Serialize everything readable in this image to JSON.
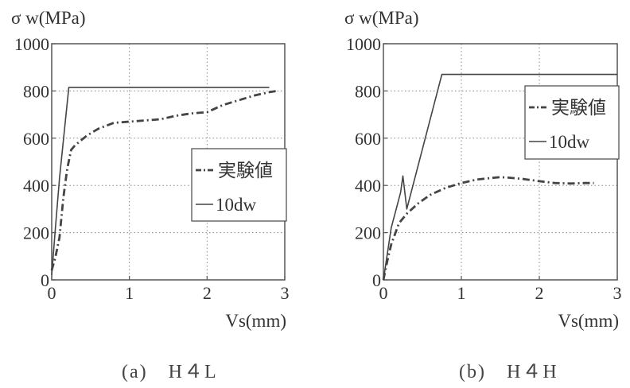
{
  "chart_data": [
    {
      "type": "line",
      "caption": "(a)　H４L",
      "xlabel": "Vs(mm)",
      "ylabel": "σ w(MPa)",
      "xlim": [
        0,
        3
      ],
      "ylim": [
        0,
        1000
      ],
      "xticks": [
        "0",
        "1",
        "2",
        "3"
      ],
      "yticks": [
        "0",
        "200",
        "400",
        "600",
        "800",
        "1000"
      ],
      "grid": "dotted",
      "legend_position": "right-middle",
      "series": [
        {
          "name": "実験値",
          "style": "dashdot",
          "x": [
            0.0,
            0.05,
            0.1,
            0.15,
            0.2,
            0.25,
            0.3,
            0.45,
            0.6,
            0.8,
            1.0,
            1.2,
            1.4,
            1.6,
            1.8,
            2.0,
            2.2,
            2.4,
            2.6,
            2.8,
            2.9
          ],
          "y": [
            40,
            100,
            180,
            350,
            470,
            550,
            570,
            610,
            640,
            665,
            670,
            675,
            680,
            695,
            705,
            710,
            740,
            760,
            780,
            795,
            800
          ]
        },
        {
          "name": "10dw",
          "style": "solid",
          "x": [
            0.0,
            0.05,
            0.1,
            0.22,
            2.8
          ],
          "y": [
            20,
            230,
            430,
            815,
            815
          ]
        }
      ]
    },
    {
      "type": "line",
      "caption": "(b)　H４H",
      "xlabel": "Vs(mm)",
      "ylabel": "σ w(MPa)",
      "xlim": [
        0,
        3
      ],
      "ylim": [
        0,
        1000
      ],
      "xticks": [
        "0",
        "1",
        "2",
        "3"
      ],
      "yticks": [
        "0",
        "200",
        "400",
        "600",
        "800",
        "1000"
      ],
      "grid": "dotted",
      "legend_position": "right-top",
      "series": [
        {
          "name": "実験値",
          "style": "dashdot",
          "x": [
            0.0,
            0.05,
            0.1,
            0.2,
            0.3,
            0.45,
            0.6,
            0.8,
            1.0,
            1.2,
            1.4,
            1.5,
            1.6,
            1.8,
            2.0,
            2.2,
            2.4,
            2.6,
            2.7
          ],
          "y": [
            0,
            80,
            150,
            240,
            280,
            325,
            360,
            390,
            410,
            425,
            432,
            435,
            433,
            427,
            418,
            410,
            408,
            410,
            410
          ]
        },
        {
          "name": "10dw",
          "style": "solid",
          "x": [
            0.0,
            0.1,
            0.22,
            0.25,
            0.3,
            0.75,
            3.0
          ],
          "y": [
            0,
            220,
            370,
            440,
            300,
            870,
            870
          ]
        }
      ]
    }
  ]
}
